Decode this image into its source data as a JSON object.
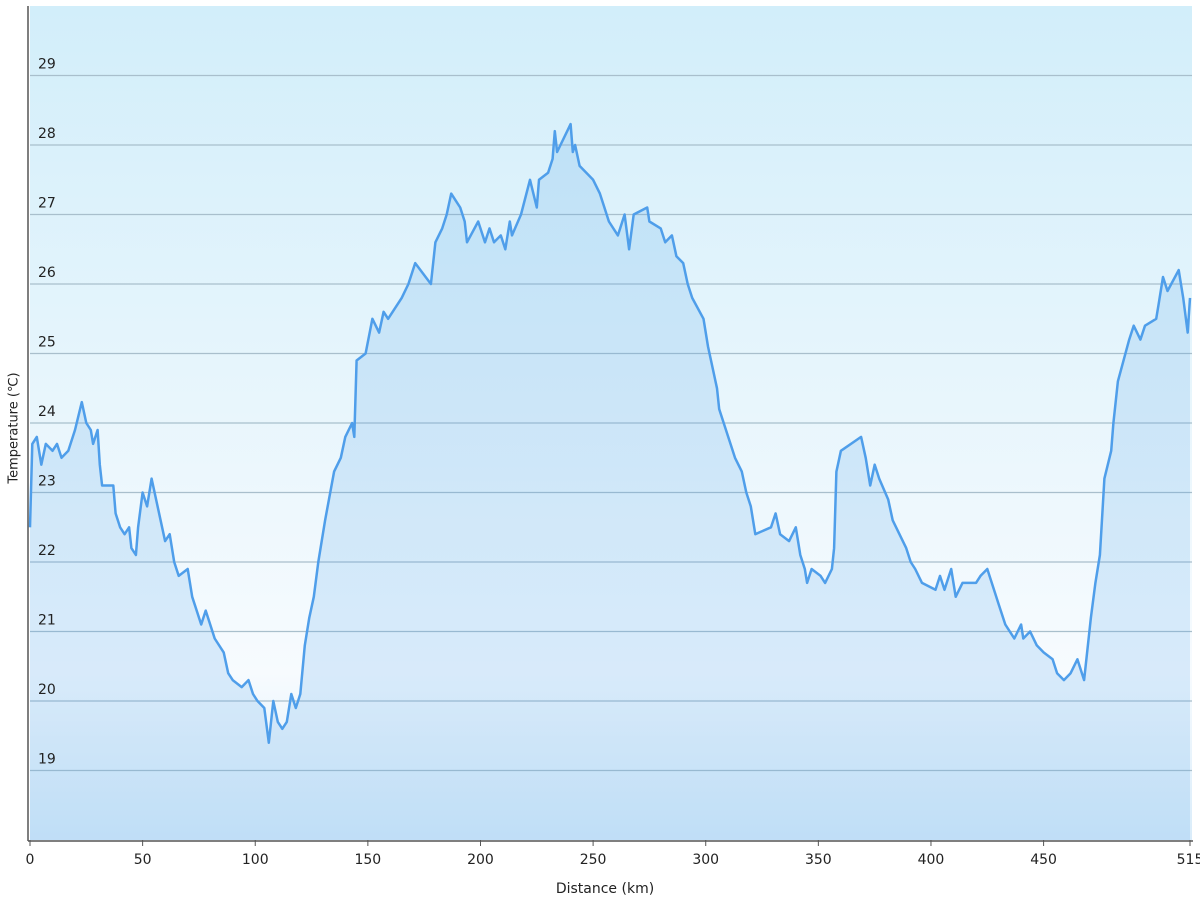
{
  "chart_data": {
    "type": "area",
    "x_label": "Distance  (km)",
    "y_label": "Temperature (℃)",
    "color": "#4f9eea",
    "grid": true,
    "xlim": [
      0,
      515
    ],
    "ylim": [
      18,
      30
    ],
    "xticks": [
      0,
      50,
      100,
      150,
      200,
      250,
      300,
      350,
      400,
      450,
      515
    ],
    "yticks": [
      19,
      20,
      21,
      22,
      23,
      24,
      25,
      26,
      27,
      28,
      29
    ],
    "x": [
      0,
      1,
      3,
      5,
      7,
      10,
      12,
      14,
      17,
      20,
      23,
      25,
      27,
      28,
      30,
      31,
      32,
      37,
      38,
      40,
      42,
      44,
      45,
      47,
      48,
      50,
      52,
      54,
      56,
      58,
      60,
      62,
      64,
      66,
      70,
      72,
      74,
      76,
      78,
      80,
      82,
      86,
      88,
      90,
      94,
      97,
      99,
      101,
      104,
      106,
      108,
      110,
      112,
      114,
      116,
      118,
      120,
      122,
      124,
      126,
      128,
      131,
      135,
      138,
      140,
      143,
      144,
      145,
      149,
      152,
      155,
      157,
      159,
      165,
      168,
      171,
      178,
      180,
      183,
      185,
      187,
      189,
      191,
      193,
      194,
      199,
      202,
      204,
      206,
      209,
      211,
      213,
      214,
      218,
      222,
      225,
      226,
      230,
      232,
      233,
      234,
      240,
      241,
      242,
      244,
      247,
      250,
      253,
      255,
      257,
      261,
      264,
      266,
      268,
      274,
      275,
      280,
      282,
      285,
      287,
      290,
      292,
      294,
      299,
      301,
      303,
      305,
      306,
      308,
      311,
      313,
      316,
      318,
      320,
      322,
      329,
      331,
      333,
      337,
      340,
      342,
      344,
      345,
      347,
      351,
      353,
      356,
      357,
      358,
      360,
      369,
      371,
      373,
      375,
      377,
      381,
      383,
      389,
      391,
      393,
      396,
      402,
      404,
      406,
      409,
      411,
      414,
      420,
      422,
      425,
      428,
      430,
      433,
      437,
      440,
      441,
      444,
      447,
      450,
      454,
      456,
      459,
      462,
      465,
      468,
      471,
      473,
      475,
      477,
      480,
      481,
      483,
      488,
      490,
      493,
      495,
      500,
      501,
      503,
      505,
      510,
      512,
      514,
      515
    ],
    "values": [
      22.5,
      23.7,
      23.8,
      23.4,
      23.7,
      23.6,
      23.7,
      23.5,
      23.6,
      23.9,
      24.3,
      24.0,
      23.9,
      23.7,
      23.9,
      23.4,
      23.1,
      23.1,
      22.7,
      22.5,
      22.4,
      22.5,
      22.2,
      22.1,
      22.5,
      23.0,
      22.8,
      23.2,
      22.9,
      22.6,
      22.3,
      22.4,
      22.0,
      21.8,
      21.9,
      21.5,
      21.3,
      21.1,
      21.3,
      21.1,
      20.9,
      20.7,
      20.4,
      20.3,
      20.2,
      20.3,
      20.1,
      20.0,
      19.9,
      19.4,
      20.0,
      19.7,
      19.6,
      19.7,
      20.1,
      19.9,
      20.1,
      20.8,
      21.2,
      21.5,
      22.0,
      22.6,
      23.3,
      23.5,
      23.8,
      24.0,
      23.8,
      24.9,
      25.0,
      25.5,
      25.3,
      25.6,
      25.5,
      25.8,
      26.0,
      26.3,
      26.0,
      26.6,
      26.8,
      27.0,
      27.3,
      27.2,
      27.1,
      26.9,
      26.6,
      26.9,
      26.6,
      26.8,
      26.6,
      26.7,
      26.5,
      26.9,
      26.7,
      27.0,
      27.5,
      27.1,
      27.5,
      27.6,
      27.8,
      28.2,
      27.9,
      28.3,
      27.9,
      28.0,
      27.7,
      27.6,
      27.5,
      27.3,
      27.1,
      26.9,
      26.7,
      27.0,
      26.5,
      27.0,
      27.1,
      26.9,
      26.8,
      26.6,
      26.7,
      26.4,
      26.3,
      26.0,
      25.8,
      25.5,
      25.1,
      24.8,
      24.5,
      24.2,
      24.0,
      23.7,
      23.5,
      23.3,
      23.0,
      22.8,
      22.4,
      22.5,
      22.7,
      22.4,
      22.3,
      22.5,
      22.1,
      21.9,
      21.7,
      21.9,
      21.8,
      21.7,
      21.9,
      22.2,
      23.3,
      23.6,
      23.8,
      23.5,
      23.1,
      23.4,
      23.2,
      22.9,
      22.6,
      22.2,
      22.0,
      21.9,
      21.7,
      21.6,
      21.8,
      21.6,
      21.9,
      21.5,
      21.7,
      21.7,
      21.8,
      21.9,
      21.6,
      21.4,
      21.1,
      20.9,
      21.1,
      20.9,
      21.0,
      20.8,
      20.7,
      20.6,
      20.4,
      20.3,
      20.4,
      20.6,
      20.3,
      21.2,
      21.7,
      22.1,
      23.2,
      23.6,
      24.0,
      24.6,
      25.2,
      25.4,
      25.2,
      25.4,
      25.5,
      25.7,
      26.1,
      25.9,
      26.2,
      25.8,
      25.3,
      25.8
    ]
  }
}
